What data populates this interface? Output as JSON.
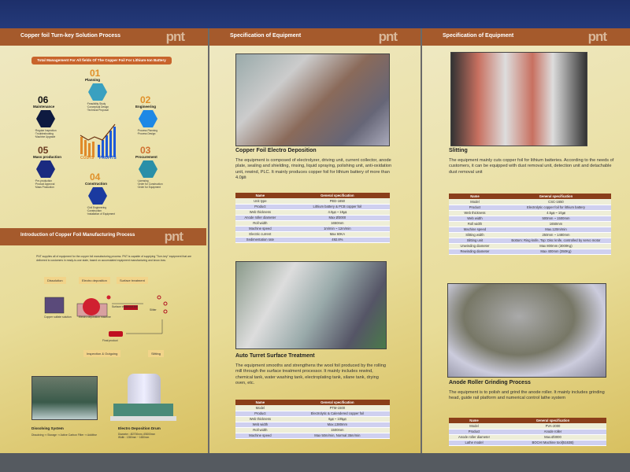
{
  "logo": "pnt",
  "left": {
    "header": "Copper foil Turn-key Solution Process",
    "banner": "Total Management For All fields Of The Copper Foil For Lithium-Ion Battery",
    "center_labels": [
      "COSTS",
      "PROFITS"
    ],
    "steps": [
      {
        "num": "01",
        "name": "Planning",
        "items": "·Feasibility Study\n·Conceptual Design\n·Technical Proposal",
        "color": "#3aa0c0"
      },
      {
        "num": "02",
        "name": "Engineering",
        "items": "·Process Planning\n·Process Design",
        "color": "#1e88e5"
      },
      {
        "num": "03",
        "name": "Procurement",
        "items": "·Licensing\n·Order for Construction\n·Order for Equipment",
        "color": "#2a8fa8"
      },
      {
        "num": "04",
        "name": "Construction",
        "items": "·Civil Engineering\n·Construction\n·Installation of Equipment",
        "color": "#1a3aa0"
      },
      {
        "num": "05",
        "name": "Mass production",
        "items": "·Pre-production\n·Product Approval\n·Mass Production",
        "color": "#1a2a80"
      },
      {
        "num": "06",
        "name": "Maintenance",
        "items": "·Regular Inspection\n·Troubleshooting\n·Machine Upgrade",
        "color": "#0e1a40"
      }
    ],
    "intro_header": "Introduction of Copper Foil Manufacturing Process",
    "intro_text": "PNT supplies all of equipment for the copper foil manufacturing process. PNT is capable of supplying \"Turn-key\" equipment that are delivered to customers in ready-to-use state, based on accumulated equipment manufacturing and know-how.",
    "process_tags": [
      "Dissolution",
      "Electro deposition",
      "Surface treatment",
      "Inspection & Outgoing",
      "Slitting"
    ],
    "diagram_labels": [
      "Copper sulfate solution",
      "Electro deposition machine",
      "Surface treatment line",
      "Slitter",
      "Final product"
    ],
    "dissolving": {
      "title": "Dissolving System",
      "text": "Dissolving ⇒ Storage ⇒ Active Carbon Filter ⇒ Additive"
    },
    "drum": {
      "title": "Electro Deposition Drum",
      "text": "Diameter : Ø2700mm, Ø3000mm\nWidth : 1350mm ~ 1650mm"
    }
  },
  "middle": {
    "header": "Specification of Equipment",
    "sections": [
      {
        "title": "Copper Foil Electro Deposition",
        "desc": "The equipment is composed of electrolyzer, driving unit, current collector, anode plate, sealing and shielding, rinsing, liquid spraying, polishing unit, anti-oxidation unit, rewind, PLC. It mainly produces copper foil for lithium battery of more than 4.0㎛",
        "cols": [
          "Name",
          "General specification"
        ],
        "rows": [
          [
            "Unit type",
            "PED-1650"
          ],
          [
            "Product",
            "Lithium battery & PCB copper foil"
          ],
          [
            "Web thickness",
            "4.0㎛ ~ 18㎛"
          ],
          [
            "Anode roller diameter",
            "Max Ø3000"
          ],
          [
            "Roll width",
            "1650mm"
          ],
          [
            "Machine speed",
            "1m/min ~ 12m/min"
          ],
          [
            "Electric current",
            "Max 60KA"
          ],
          [
            "Sedimentation rate",
            "492.8%"
          ]
        ]
      },
      {
        "title": "Auto Turret Surface Treatment",
        "desc": "The equipment smooths and strengthens the wool foil produced by the rolling mill through the surface treatment processor. It mainly includes rewind, chemical tank, water washing tank, electroplating tank, silane tank, drying oven, etc.",
        "cols": [
          "Name",
          "General specification"
        ],
        "rows": [
          [
            "Model",
            "PTM-1500"
          ],
          [
            "Product",
            "Electrolytic & Calendered copper foil"
          ],
          [
            "Web thickness",
            "6㎛ ~ 105㎛"
          ],
          [
            "Web width",
            "Max.1380mm"
          ],
          [
            "Roll width",
            "1500mm"
          ],
          [
            "Machine speed",
            "Max 50m/min, Normal 35m/min"
          ]
        ]
      }
    ]
  },
  "right": {
    "header": "Specification of Equipment",
    "sections": [
      {
        "title": "Slitting",
        "desc": "The equipment mainly cuts copper foil for lithium batteries. According to the needs of customers, it can be equipped with dust removal unit, detection unit and detachable dust removal unit",
        "cols": [
          "Name",
          "General specification"
        ],
        "rows": [
          [
            "Model",
            "CSC-1650"
          ],
          [
            "Product",
            "Electrolytic copper foil for lithium battery"
          ],
          [
            "Web thickness",
            "4.5㎛ ~ 10㎛"
          ],
          [
            "Web width",
            "500mm ~ 1500mm"
          ],
          [
            "Roll width",
            "1650mm"
          ],
          [
            "Machine speed",
            "Max.120m/min"
          ],
          [
            "Slitting width",
            "250mm ~ 1480mm"
          ],
          [
            "Slitting unit",
            "Bottom: Ring knife, Top: Disc knife, controlled by servo motor"
          ],
          [
            "Unwinding diameter",
            "Max 800mm (3000Kg)"
          ],
          [
            "Rewinding diameter",
            "Max 400mm (350Kg)"
          ]
        ]
      },
      {
        "title": "Anode Roller Grinding Process",
        "desc": "The equipment is to polish and grind the anode roller. It mainly includes grinding head, guide rail platform and numerical control lathe system",
        "cols": [
          "Name",
          "General specification"
        ],
        "rows": [
          [
            "Model",
            "PVA-2000"
          ],
          [
            "Product",
            "Anode roller"
          ],
          [
            "Anode roller diameter",
            "Max.Ø3000"
          ],
          [
            "Lathe model",
            "BOCHI Machine tool(5163B)"
          ]
        ]
      }
    ]
  }
}
